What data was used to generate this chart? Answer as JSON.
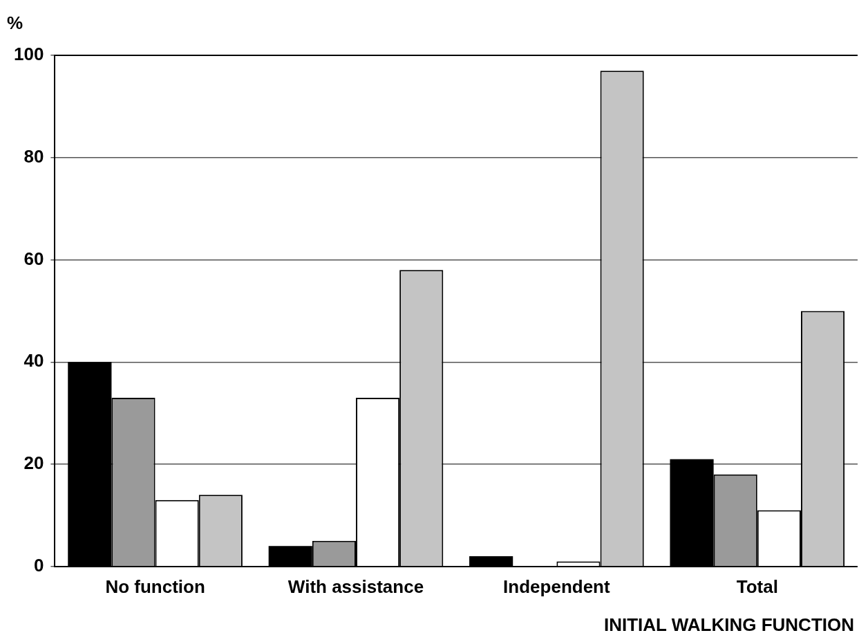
{
  "chart_data": {
    "type": "bar",
    "xlabel": "INITIAL WALKING FUNCTION",
    "ylabel": "%",
    "categories": [
      "No function",
      "With assistance",
      "Independent",
      "Total"
    ],
    "series": [
      {
        "color": "#000000",
        "values": [
          40,
          4,
          2,
          21
        ]
      },
      {
        "color": "#9a9a9a",
        "values": [
          33,
          5,
          0,
          18
        ]
      },
      {
        "color": "#ffffff",
        "values": [
          13,
          33,
          1,
          11
        ]
      },
      {
        "color": "#c4c4c4",
        "values": [
          14,
          58,
          97,
          50
        ]
      }
    ],
    "ylim": [
      0,
      100
    ],
    "yticks": [
      0,
      20,
      40,
      60,
      80,
      100
    ],
    "grid": "y",
    "legend": false
  }
}
